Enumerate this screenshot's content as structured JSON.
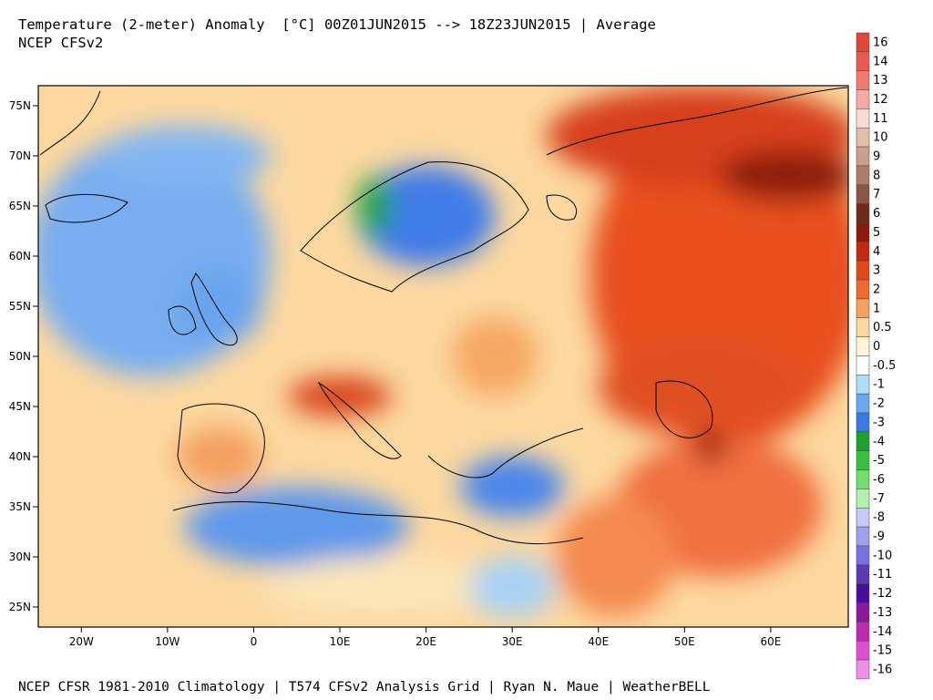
{
  "header": {
    "title": "Temperature (2-meter) Anomaly  [°C] 00Z01JUN2015 --> 18Z23JUN2015 | Average",
    "subtitle": "NCEP CFSv2"
  },
  "footer": {
    "credit": "NCEP CFSR 1981-2010 Climatology | T574 CFSv2 Analysis Grid | Ryan N. Maue | WeatherBELL"
  },
  "map": {
    "lon_range": [
      -25,
      69
    ],
    "lat_range": [
      23,
      77
    ],
    "lon_ticks": [
      {
        "value": -20,
        "label": "20W"
      },
      {
        "value": -10,
        "label": "10W"
      },
      {
        "value": 0,
        "label": "0"
      },
      {
        "value": 10,
        "label": "10E"
      },
      {
        "value": 20,
        "label": "20E"
      },
      {
        "value": 30,
        "label": "30E"
      },
      {
        "value": 40,
        "label": "40E"
      },
      {
        "value": 50,
        "label": "50E"
      },
      {
        "value": 60,
        "label": "60E"
      }
    ],
    "lat_ticks": [
      {
        "value": 75,
        "label": "75N"
      },
      {
        "value": 70,
        "label": "70N"
      },
      {
        "value": 65,
        "label": "65N"
      },
      {
        "value": 60,
        "label": "60N"
      },
      {
        "value": 55,
        "label": "55N"
      },
      {
        "value": 50,
        "label": "50N"
      },
      {
        "value": 45,
        "label": "45N"
      },
      {
        "value": 40,
        "label": "40N"
      },
      {
        "value": 35,
        "label": "35N"
      },
      {
        "value": 30,
        "label": "30N"
      },
      {
        "value": 25,
        "label": "25N"
      }
    ],
    "anomaly_regions": [
      {
        "name": "western-russia-siberia-warm",
        "lon": 55,
        "lat": 58,
        "rx_deg": 16,
        "ry_deg": 17,
        "level": "3",
        "color": "#e8501e"
      },
      {
        "name": "barents-arctic-warm",
        "lon": 52,
        "lat": 72,
        "rx_deg": 18,
        "ry_deg": 5,
        "level": "4",
        "color": "#d7401a"
      },
      {
        "name": "kara-sea-hot",
        "lon": 62,
        "lat": 68,
        "rx_deg": 8,
        "ry_deg": 2.5,
        "level": "6",
        "color": "#8c1a0c"
      },
      {
        "name": "kazakhstan-warm",
        "lon": 52,
        "lat": 47,
        "rx_deg": 12,
        "ry_deg": 5,
        "level": "3",
        "color": "#e05020"
      },
      {
        "name": "iran-warm",
        "lon": 54,
        "lat": 35,
        "rx_deg": 12,
        "ry_deg": 7,
        "level": "2",
        "color": "#f07040"
      },
      {
        "name": "caspian-hot",
        "lon": 53,
        "lat": 41,
        "rx_deg": 2,
        "ry_deg": 1.5,
        "level": "5",
        "color": "#9e200e"
      },
      {
        "name": "north-atlantic-cool",
        "lon": -12,
        "lat": 60,
        "rx_deg": 14,
        "ry_deg": 12,
        "level": "-1",
        "color": "#78aef0"
      },
      {
        "name": "greenland-sea-cool",
        "lon": -8,
        "lat": 70,
        "rx_deg": 10,
        "ry_deg": 3,
        "level": "-1",
        "color": "#82b6f2"
      },
      {
        "name": "scandinavia-cold",
        "lon": 20,
        "lat": 64,
        "rx_deg": 8,
        "ry_deg": 5,
        "level": "-2",
        "color": "#3f7ce8"
      },
      {
        "name": "norway-mountains-very-cold",
        "lon": 14,
        "lat": 65,
        "rx_deg": 2,
        "ry_deg": 3,
        "level": "-4",
        "color": "#22a238"
      },
      {
        "name": "british-isles-cool",
        "lon": -4,
        "lat": 55,
        "rx_deg": 5,
        "ry_deg": 4,
        "level": "-1",
        "color": "#6aa4ee"
      },
      {
        "name": "alps-warm",
        "lon": 10,
        "lat": 46,
        "rx_deg": 6,
        "ry_deg": 2,
        "level": "3",
        "color": "#d8441c"
      },
      {
        "name": "iberia-warm",
        "lon": -4,
        "lat": 40,
        "rx_deg": 5,
        "ry_deg": 3,
        "level": "1",
        "color": "#f4a060"
      },
      {
        "name": "north-africa-cool",
        "lon": 5,
        "lat": 33,
        "rx_deg": 13,
        "ry_deg": 4,
        "level": "-1",
        "color": "#5e98ea"
      },
      {
        "name": "sahara-south-mild",
        "lon": 15,
        "lat": 27,
        "rx_deg": 14,
        "ry_deg": 3,
        "level": "0.5",
        "color": "#fce6b8"
      },
      {
        "name": "eastern-med-cool",
        "lon": 30,
        "lat": 37,
        "rx_deg": 6,
        "ry_deg": 3,
        "level": "-2",
        "color": "#4a86ea"
      },
      {
        "name": "ukraine-warm",
        "lon": 28,
        "lat": 50,
        "rx_deg": 5,
        "ry_deg": 4,
        "level": "1",
        "color": "#f6a864"
      },
      {
        "name": "middle-east-warm",
        "lon": 42,
        "lat": 30,
        "rx_deg": 7,
        "ry_deg": 6,
        "level": "1",
        "color": "#f48a50"
      },
      {
        "name": "arabia-cool",
        "lon": 30,
        "lat": 27,
        "rx_deg": 5,
        "ry_deg": 3,
        "level": "-0.5",
        "color": "#a8d2f6"
      }
    ]
  },
  "legend": [
    {
      "label": "16",
      "color": "#e0463c"
    },
    {
      "label": "14",
      "color": "#e85a52"
    },
    {
      "label": "13",
      "color": "#f07a72"
    },
    {
      "label": "12",
      "color": "#f6aaa4"
    },
    {
      "label": "11",
      "color": "#f8dcd4"
    },
    {
      "label": "10",
      "color": "#e0c0ac"
    },
    {
      "label": "9",
      "color": "#c8a08c"
    },
    {
      "label": "8",
      "color": "#ae7c68"
    },
    {
      "label": "7",
      "color": "#8c5444"
    },
    {
      "label": "6",
      "color": "#6e2a1c"
    },
    {
      "label": "5",
      "color": "#8a1a0c"
    },
    {
      "label": "4",
      "color": "#c02a10"
    },
    {
      "label": "3",
      "color": "#e04a18"
    },
    {
      "label": "2",
      "color": "#f06a30"
    },
    {
      "label": "1",
      "color": "#f6a060"
    },
    {
      "label": "0.5",
      "color": "#fcd89e"
    },
    {
      "label": "0",
      "color": "#fff6d8"
    },
    {
      "label": "-0.5",
      "color": "#ffffff"
    },
    {
      "label": "-1",
      "color": "#b0dcf8"
    },
    {
      "label": "-2",
      "color": "#6aa8f0"
    },
    {
      "label": "-3",
      "color": "#3a78e4"
    },
    {
      "label": "-4",
      "color": "#22a02e"
    },
    {
      "label": "-5",
      "color": "#38c040"
    },
    {
      "label": "-6",
      "color": "#72dc70"
    },
    {
      "label": "-7",
      "color": "#b2f0b0"
    },
    {
      "label": "-8",
      "color": "#c8c8f8"
    },
    {
      "label": "-9",
      "color": "#a0a0f0"
    },
    {
      "label": "-10",
      "color": "#7a70e0"
    },
    {
      "label": "-11",
      "color": "#5a3ab8"
    },
    {
      "label": "-12",
      "color": "#4a0c9c"
    },
    {
      "label": "-13",
      "color": "#8a1a9a"
    },
    {
      "label": "-14",
      "color": "#c02ab0"
    },
    {
      "label": "-15",
      "color": "#e050d4"
    },
    {
      "label": "-16",
      "color": "#f090e8"
    }
  ]
}
